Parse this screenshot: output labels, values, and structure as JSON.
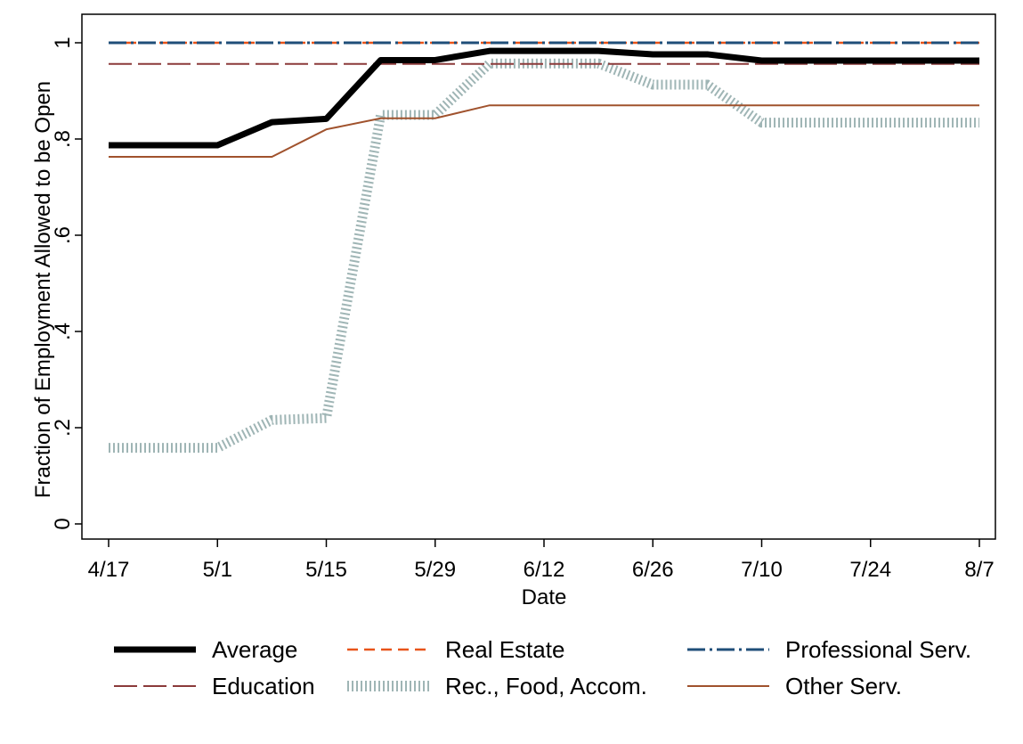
{
  "chart_data": {
    "type": "line",
    "xlabel": "Date",
    "ylabel": "Fraction of Employment Allowed to be Open",
    "x_ticks": [
      "4/17",
      "5/1",
      "5/15",
      "5/29",
      "6/12",
      "6/26",
      "7/10",
      "7/24",
      "8/7"
    ],
    "y_ticks": [
      "0",
      ".2",
      ".4",
      ".6",
      ".8",
      "1"
    ],
    "ylim": [
      0,
      1
    ],
    "x": [
      "4/17",
      "4/24",
      "5/1",
      "5/8",
      "5/15",
      "5/22",
      "5/29",
      "6/5",
      "6/12",
      "6/19",
      "6/26",
      "7/3",
      "7/10",
      "7/17",
      "7/24",
      "7/31",
      "8/7"
    ],
    "series": [
      {
        "name": "Average",
        "color": "#000000",
        "style": "solid-thick",
        "values": [
          0.787,
          0.787,
          0.787,
          0.835,
          0.842,
          0.964,
          0.964,
          0.983,
          0.983,
          0.983,
          0.976,
          0.976,
          0.963,
          0.963,
          0.963,
          0.963,
          0.963
        ]
      },
      {
        "name": "Real Estate",
        "color": "#e8541a",
        "style": "dashed",
        "values": [
          1,
          1,
          1,
          1,
          1,
          1,
          1,
          1,
          1,
          1,
          1,
          1,
          1,
          1,
          1,
          1,
          1
        ]
      },
      {
        "name": "Professional Serv.",
        "color": "#1f4e79",
        "style": "dash-dot",
        "values": [
          1,
          1,
          1,
          1,
          1,
          1,
          1,
          1,
          1,
          1,
          1,
          1,
          1,
          1,
          1,
          1,
          1
        ]
      },
      {
        "name": "Education",
        "color": "#8b3a3a",
        "style": "long-dash",
        "values": [
          0.956,
          0.956,
          0.956,
          0.956,
          0.956,
          0.956,
          0.956,
          0.956,
          0.956,
          0.956,
          0.956,
          0.956,
          0.956,
          0.956,
          0.956,
          0.956,
          0.956
        ]
      },
      {
        "name": "Rec., Food, Accom.",
        "color": "#9fb5b5",
        "style": "hatched",
        "values": [
          0.158,
          0.158,
          0.158,
          0.216,
          0.22,
          0.85,
          0.85,
          0.957,
          0.957,
          0.957,
          0.913,
          0.913,
          0.834,
          0.834,
          0.834,
          0.834,
          0.834
        ]
      },
      {
        "name": "Other Serv.",
        "color": "#a0522d",
        "style": "solid-thin",
        "values": [
          0.763,
          0.763,
          0.763,
          0.763,
          0.82,
          0.843,
          0.843,
          0.87,
          0.87,
          0.87,
          0.87,
          0.87,
          0.87,
          0.87,
          0.87,
          0.87,
          0.87
        ]
      }
    ],
    "legend_position": "bottom",
    "grid": false
  }
}
